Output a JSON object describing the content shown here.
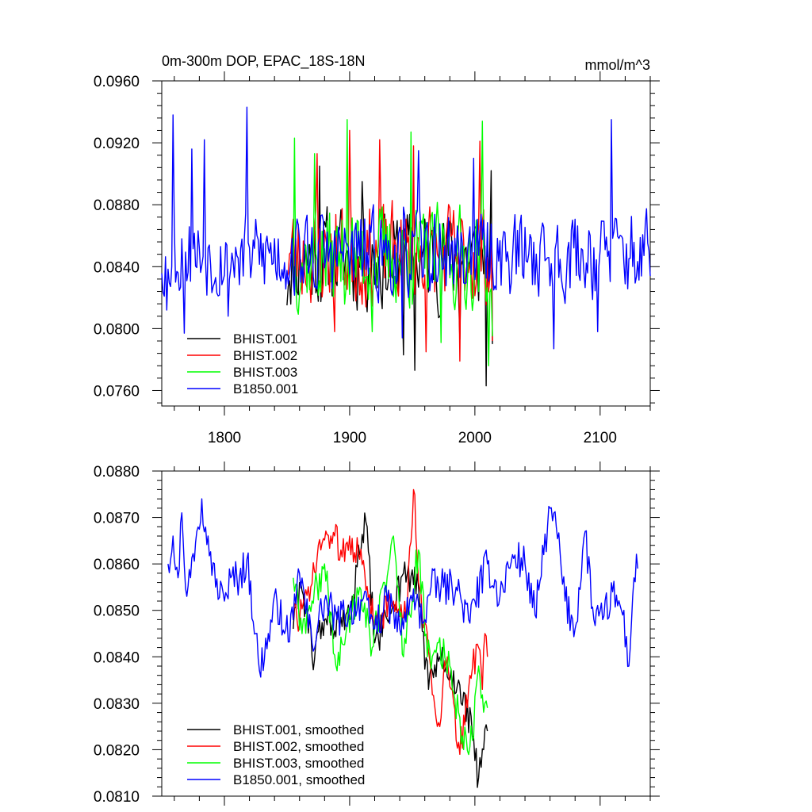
{
  "chart_data": [
    {
      "type": "line",
      "title": "0m-300m DOP, EPAC_18S-18N",
      "units": "mmol/m^3",
      "xlim": [
        1750,
        2140
      ],
      "ylim": [
        0.075,
        0.096
      ],
      "x_ticks": [
        1800,
        1900,
        2000,
        2100
      ],
      "x_tick_labels": [
        "1800",
        "1900",
        "2000",
        "2100"
      ],
      "y_ticks": [
        0.076,
        0.08,
        0.084,
        0.088,
        0.092,
        0.096
      ],
      "y_tick_labels": [
        "0.0760",
        "0.0800",
        "0.0840",
        "0.0880",
        "0.0920",
        "0.0960"
      ],
      "legend_position": "bottom-left",
      "series": [
        {
          "name": "BHIST.001",
          "color": "#000000",
          "x_start": 1850,
          "x_end": 2014,
          "mean": 0.0845,
          "amp": 0.0035,
          "seed": 11,
          "anchors": [
            [
              1850,
              0.0815
            ],
            [
              1876,
              0.0905
            ],
            [
              1910,
              0.0895
            ],
            [
              1943,
              0.0783
            ],
            [
              1952,
              0.0773
            ],
            [
              1988,
              0.0793
            ],
            [
              2009,
              0.0763
            ],
            [
              2013,
              0.0902
            ],
            [
              2014,
              0.079
            ]
          ]
        },
        {
          "name": "BHIST.002",
          "color": "#ff0000",
          "x_start": 1850,
          "x_end": 2014,
          "mean": 0.0848,
          "amp": 0.0035,
          "seed": 23,
          "anchors": [
            [
              1874,
              0.0913
            ],
            [
              1888,
              0.0798
            ],
            [
              1900,
              0.0928
            ],
            [
              1924,
              0.0922
            ],
            [
              1951,
              0.0918
            ],
            [
              1961,
              0.0785
            ],
            [
              1988,
              0.0779
            ],
            [
              2004,
              0.0921
            ],
            [
              2014,
              0.0792
            ]
          ]
        },
        {
          "name": "BHIST.003",
          "color": "#00ff00",
          "x_start": 1855,
          "x_end": 2014,
          "mean": 0.0846,
          "amp": 0.0035,
          "seed": 37,
          "anchors": [
            [
              1856,
              0.0923
            ],
            [
              1872,
              0.0913
            ],
            [
              1898,
              0.0935
            ],
            [
              1918,
              0.0798
            ],
            [
              1949,
              0.0927
            ],
            [
              1973,
              0.0791
            ],
            [
              2006,
              0.0934
            ],
            [
              2011,
              0.0776
            ],
            [
              2014,
              0.0795
            ]
          ]
        },
        {
          "name": "B1850.001",
          "color": "#0000ff",
          "x_start": 1750,
          "x_end": 2140,
          "mean": 0.0848,
          "amp": 0.003,
          "seed": 53,
          "anchors": [
            [
              1754,
              0.0812
            ],
            [
              1759,
              0.0938
            ],
            [
              1768,
              0.0797
            ],
            [
              1774,
              0.0916
            ],
            [
              1784,
              0.0922
            ],
            [
              1803,
              0.0808
            ],
            [
              1818,
              0.0943
            ],
            [
              1822,
              0.0842
            ],
            [
              1942,
              0.0794
            ],
            [
              1955,
              0.0915
            ],
            [
              1999,
              0.091
            ],
            [
              2063,
              0.0787
            ],
            [
              2098,
              0.0798
            ],
            [
              2109,
              0.0935
            ],
            [
              2140,
              0.0834
            ]
          ]
        }
      ]
    },
    {
      "type": "line",
      "title": "",
      "xlim": [
        1750,
        2140
      ],
      "ylim": [
        0.081,
        0.088
      ],
      "x_ticks": [
        1800,
        1900,
        2000,
        2100
      ],
      "y_ticks": [
        0.081,
        0.082,
        0.083,
        0.084,
        0.085,
        0.086,
        0.087,
        0.088
      ],
      "y_tick_labels": [
        "0.0810",
        "0.0820",
        "0.0830",
        "0.0840",
        "0.0850",
        "0.0860",
        "0.0870",
        "0.0880"
      ],
      "legend_position": "bottom-left",
      "series": [
        {
          "name": "BHIST.001, smoothed",
          "color": "#000000",
          "x_start": 1855,
          "x_end": 2010,
          "seed": 61,
          "anchors": [
            [
              1855,
              0.0846
            ],
            [
              1860,
              0.0856
            ],
            [
              1866,
              0.085
            ],
            [
              1870,
              0.084
            ],
            [
              1880,
              0.0848
            ],
            [
              1892,
              0.0846
            ],
            [
              1900,
              0.0848
            ],
            [
              1908,
              0.0862
            ],
            [
              1913,
              0.0869
            ],
            [
              1920,
              0.0843
            ],
            [
              1930,
              0.0848
            ],
            [
              1943,
              0.0858
            ],
            [
              1955,
              0.0855
            ],
            [
              1963,
              0.0833
            ],
            [
              1972,
              0.084
            ],
            [
              1980,
              0.0835
            ],
            [
              1987,
              0.0835
            ],
            [
              1998,
              0.0823
            ],
            [
              2003,
              0.0814
            ],
            [
              2007,
              0.082
            ],
            [
              2010,
              0.0824
            ]
          ]
        },
        {
          "name": "BHIST.002, smoothed",
          "color": "#ff0000",
          "x_start": 1855,
          "x_end": 2010,
          "seed": 73,
          "anchors": [
            [
              1855,
              0.0848
            ],
            [
              1868,
              0.0852
            ],
            [
              1875,
              0.0864
            ],
            [
              1885,
              0.0866
            ],
            [
              1893,
              0.0863
            ],
            [
              1900,
              0.0866
            ],
            [
              1908,
              0.0861
            ],
            [
              1920,
              0.0848
            ],
            [
              1935,
              0.0852
            ],
            [
              1945,
              0.0848
            ],
            [
              1951,
              0.0876
            ],
            [
              1955,
              0.0856
            ],
            [
              1962,
              0.0845
            ],
            [
              1970,
              0.0825
            ],
            [
              1978,
              0.084
            ],
            [
              1988,
              0.0819
            ],
            [
              1996,
              0.0836
            ],
            [
              2003,
              0.0842
            ],
            [
              2006,
              0.0833
            ],
            [
              2008,
              0.0845
            ],
            [
              2010,
              0.084
            ]
          ]
        },
        {
          "name": "BHIST.003, smoothed",
          "color": "#00ff00",
          "x_start": 1855,
          "x_end": 2010,
          "seed": 89,
          "anchors": [
            [
              1855,
              0.0857
            ],
            [
              1862,
              0.0845
            ],
            [
              1870,
              0.0852
            ],
            [
              1880,
              0.086
            ],
            [
              1890,
              0.0837
            ],
            [
              1898,
              0.0847
            ],
            [
              1908,
              0.0855
            ],
            [
              1918,
              0.0842
            ],
            [
              1928,
              0.0856
            ],
            [
              1935,
              0.0866
            ],
            [
              1943,
              0.084
            ],
            [
              1955,
              0.0863
            ],
            [
              1962,
              0.084
            ],
            [
              1970,
              0.0843
            ],
            [
              1980,
              0.0838
            ],
            [
              1990,
              0.0823
            ],
            [
              1998,
              0.0822
            ],
            [
              2003,
              0.0838
            ],
            [
              2008,
              0.083
            ],
            [
              2010,
              0.0829
            ]
          ]
        },
        {
          "name": "B1850.001, smoothed",
          "color": "#0000ff",
          "x_start": 1755,
          "x_end": 2130,
          "seed": 97,
          "anchors": [
            [
              1755,
              0.086
            ],
            [
              1759,
              0.0866
            ],
            [
              1763,
              0.0857
            ],
            [
              1766,
              0.0871
            ],
            [
              1770,
              0.0853
            ],
            [
              1778,
              0.0867
            ],
            [
              1782,
              0.0874
            ],
            [
              1787,
              0.0866
            ],
            [
              1793,
              0.0855
            ],
            [
              1800,
              0.0852
            ],
            [
              1805,
              0.0857
            ],
            [
              1812,
              0.0857
            ],
            [
              1818,
              0.0861
            ],
            [
              1825,
              0.0845
            ],
            [
              1828,
              0.0837
            ],
            [
              1835,
              0.0845
            ],
            [
              1842,
              0.0852
            ],
            [
              1848,
              0.0845
            ],
            [
              1855,
              0.0848
            ],
            [
              1860,
              0.0858
            ],
            [
              1870,
              0.0843
            ],
            [
              1880,
              0.0852
            ],
            [
              1890,
              0.0848
            ],
            [
              1900,
              0.085
            ],
            [
              1910,
              0.0852
            ],
            [
              1920,
              0.0846
            ],
            [
              1930,
              0.0852
            ],
            [
              1940,
              0.0846
            ],
            [
              1950,
              0.0852
            ],
            [
              1960,
              0.0848
            ],
            [
              1965,
              0.0855
            ],
            [
              1975,
              0.0855
            ],
            [
              1985,
              0.0855
            ],
            [
              1995,
              0.0848
            ],
            [
              2000,
              0.0852
            ],
            [
              2010,
              0.086
            ],
            [
              2020,
              0.0853
            ],
            [
              2030,
              0.0862
            ],
            [
              2040,
              0.086
            ],
            [
              2048,
              0.0849
            ],
            [
              2055,
              0.0862
            ],
            [
              2060,
              0.0872
            ],
            [
              2065,
              0.0868
            ],
            [
              2072,
              0.0852
            ],
            [
              2080,
              0.0846
            ],
            [
              2088,
              0.0867
            ],
            [
              2095,
              0.0848
            ],
            [
              2102,
              0.0848
            ],
            [
              2110,
              0.0854
            ],
            [
              2118,
              0.0849
            ],
            [
              2123,
              0.0838
            ],
            [
              2127,
              0.0857
            ],
            [
              2130,
              0.0859
            ]
          ]
        }
      ]
    }
  ]
}
